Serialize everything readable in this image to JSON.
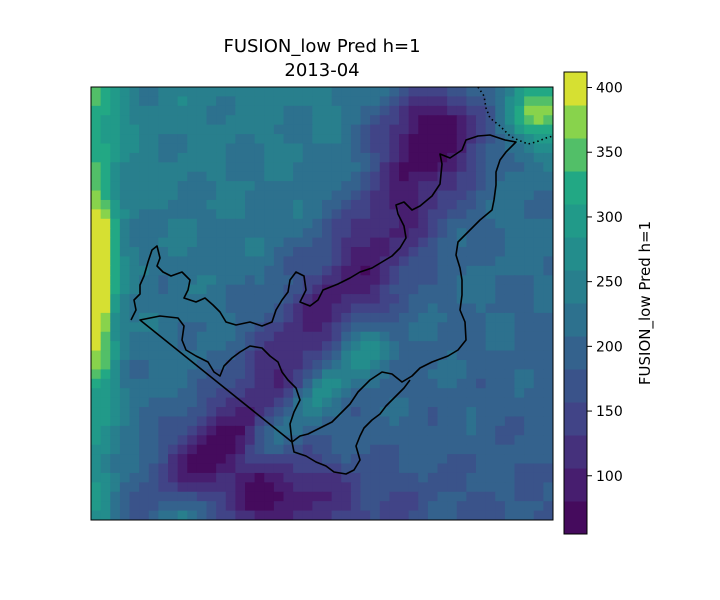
{
  "title_line1": "FUSION_low Pred h=1",
  "title_line2": "2013-04",
  "colorbar": {
    "label": "FUSION_low Pred h=1",
    "min": 55,
    "max": 412,
    "ticks": [
      100,
      150,
      200,
      250,
      300,
      350,
      400
    ],
    "colormap": "viridis",
    "levels": 14
  },
  "map": {
    "field": "FUSION_low Pred h=1",
    "grid": [
      48,
      46
    ],
    "region_outline": "solid black",
    "boundary_outline": "dotted black"
  },
  "chart_data": {
    "type": "heatmap",
    "title": "FUSION_low Pred h=1\n2013-04",
    "value_label": "FUSION_low Pred h=1",
    "vmin": 55,
    "vmax": 412,
    "colorbar_ticks": [
      100,
      150,
      200,
      250,
      300,
      350,
      400
    ]
  }
}
